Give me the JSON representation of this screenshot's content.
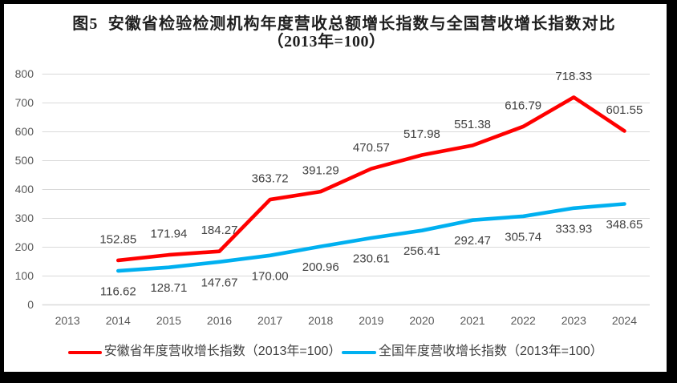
{
  "window": {
    "background": "#000000",
    "canvas_background": "#FFFFFF"
  },
  "title": {
    "line1": "图5  安徽省检验检测机构年度营收总额增长指数与全国营收增长指数对比",
    "line2": "（2013年=100）",
    "color": "#1F1F1F"
  },
  "chart_data": {
    "type": "line",
    "categories": [
      "2013",
      "2014",
      "2015",
      "2016",
      "2017",
      "2018",
      "2019",
      "2020",
      "2021",
      "2022",
      "2023",
      "2024"
    ],
    "series": [
      {
        "name": "安徽省年度营收增长指数（2013年=100）",
        "color": "#FF0000",
        "values": [
          null,
          152.85,
          171.94,
          184.27,
          363.72,
          391.29,
          470.57,
          517.98,
          551.38,
          616.79,
          718.33,
          601.55
        ],
        "label_position": "above"
      },
      {
        "name": "全国年度营收增长指数（2013年=100）",
        "color": "#00B0F0",
        "values": [
          null,
          116.62,
          128.71,
          147.67,
          170.0,
          200.96,
          230.61,
          256.41,
          292.47,
          305.74,
          333.93,
          348.65
        ],
        "label_position": "below"
      }
    ],
    "ylim": [
      0,
      800
    ],
    "ytick_step": 100,
    "grid": true,
    "gridline_color": "#D9D9D9",
    "axis_label_color": "#595959",
    "data_label_color": "#404040",
    "data_label_decimals": 2,
    "line_width": 4.6,
    "legend_position": "bottom"
  }
}
